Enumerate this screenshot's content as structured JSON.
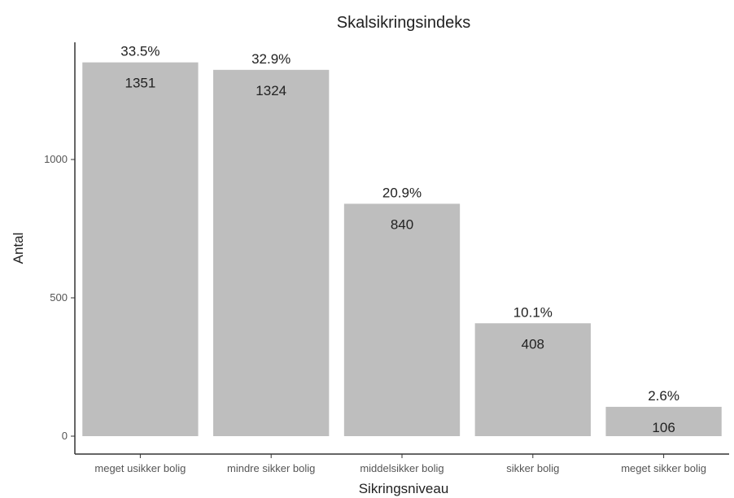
{
  "chart_data": {
    "type": "bar",
    "title": "Skalsikringsindeks",
    "xlabel": "Sikringsniveau",
    "ylabel": "Antal",
    "categories": [
      "meget usikker bolig",
      "mindre sikker bolig",
      "middelsikker bolig",
      "sikker bolig",
      "meget sikker bolig"
    ],
    "values": [
      1351,
      1324,
      840,
      408,
      106
    ],
    "percent_labels": [
      "33.5%",
      "32.9%",
      "20.9%",
      "10.1%",
      "2.6%"
    ],
    "value_labels": [
      "1351",
      "1324",
      "840",
      "408",
      "106"
    ],
    "yticks": [
      0,
      500,
      1000
    ],
    "ytick_labels": [
      "0",
      "500",
      "1000"
    ],
    "ylim": [
      0,
      1400
    ],
    "grid": false,
    "bar_color": "#bebebe",
    "axis_color": "#333333"
  }
}
